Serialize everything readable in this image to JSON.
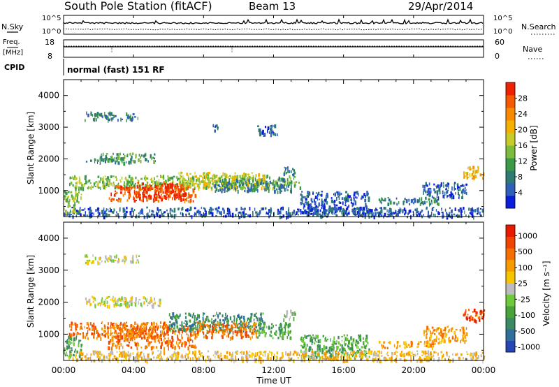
{
  "header": {
    "station": "South Pole Station (fitACF)",
    "beam": "Beam 13",
    "date": "29/Apr/2014"
  },
  "top_panels": {
    "nsky_label": "N.Sky",
    "nsky_ticks": [
      "10^5",
      "10^0"
    ],
    "nsearch_label": "N.Search",
    "nsearch_ticks": [
      "10^5",
      "10^0"
    ],
    "freq_label_1": "Freq.",
    "freq_label_2": "[MHz]",
    "freq_ticks": [
      "18",
      "8"
    ],
    "nave_label": "Nave",
    "nave_ticks": [
      "60",
      "0"
    ],
    "cpid_label": "CPID",
    "cpid_text": "normal (fast) 151 RF"
  },
  "chart_data": [
    {
      "type": "heatmap",
      "ylabel": "Slant Range [km]",
      "xlabel": "",
      "x_ticks": [
        "00:00",
        "04:00",
        "08:00",
        "12:00",
        "16:00",
        "20:00",
        "00:00"
      ],
      "xlim_hours": [
        0,
        24
      ],
      "ylim": [
        180,
        4500
      ],
      "y_ticks": [
        1000,
        2000,
        3000,
        4000
      ],
      "colorbar": {
        "label": "Power [dB]",
        "ticks": [
          "4",
          "8",
          "12",
          "16",
          "20",
          "24",
          "28"
        ],
        "colors": [
          "#0a1dd8",
          "#2f5fb7",
          "#2f7a72",
          "#3a9a48",
          "#7dbb3c",
          "#c7cc2a",
          "#f5b000",
          "#f78a00",
          "#f55a00",
          "#ee2200"
        ]
      },
      "scatter_regions": [
        {
          "t_start": 1.2,
          "t_end": 4.3,
          "r_start": 3250,
          "r_end": 3500,
          "level": 2
        },
        {
          "t_start": 1.2,
          "t_end": 4.0,
          "r_start": 1900,
          "r_end": 2050,
          "level": 2
        },
        {
          "t_start": 2.0,
          "t_end": 5.5,
          "r_start": 1950,
          "r_end": 2200,
          "level": 3
        },
        {
          "t_start": 0.3,
          "t_end": 13.5,
          "r_start": 1100,
          "r_end": 1500,
          "level": 4
        },
        {
          "t_start": 2.5,
          "t_end": 7.5,
          "r_start": 700,
          "r_end": 1200,
          "level": 8
        },
        {
          "t_start": 4.0,
          "t_end": 7.0,
          "r_start": 800,
          "r_end": 1300,
          "level": 9
        },
        {
          "t_start": 6.5,
          "t_end": 11.5,
          "r_start": 1100,
          "r_end": 1600,
          "level": 5
        },
        {
          "t_start": 8.5,
          "t_end": 13.0,
          "r_start": 1000,
          "r_end": 1400,
          "level": 2
        },
        {
          "t_start": 11.0,
          "t_end": 12.2,
          "r_start": 2800,
          "r_end": 3100,
          "level": 1
        },
        {
          "t_start": 8.5,
          "t_end": 8.8,
          "r_start": 2900,
          "r_end": 3100,
          "level": 1
        },
        {
          "t_start": 12.5,
          "t_end": 13.2,
          "r_start": 1500,
          "r_end": 1800,
          "level": 2
        },
        {
          "t_start": 13.5,
          "t_end": 17.5,
          "r_start": 300,
          "r_end": 1000,
          "level": 1
        },
        {
          "t_start": 18.0,
          "t_end": 21.5,
          "r_start": 600,
          "r_end": 800,
          "level": 2
        },
        {
          "t_start": 20.5,
          "t_end": 23.0,
          "r_start": 800,
          "r_end": 1300,
          "level": 1
        },
        {
          "t_start": 22.8,
          "t_end": 24.0,
          "r_start": 1400,
          "r_end": 1800,
          "level": 6
        },
        {
          "t_start": 0.0,
          "t_end": 24.0,
          "r_start": 200,
          "r_end": 500,
          "level": 1
        },
        {
          "t_start": 0.0,
          "t_end": 1.0,
          "r_start": 300,
          "r_end": 1000,
          "level": 4
        }
      ]
    },
    {
      "type": "heatmap",
      "ylabel": "Slant Range [km]",
      "xlabel": "Time UT",
      "x_ticks": [
        "00:00",
        "04:00",
        "08:00",
        "12:00",
        "16:00",
        "20:00",
        "00:00"
      ],
      "xlim_hours": [
        0,
        24
      ],
      "ylim": [
        180,
        4500
      ],
      "y_ticks": [
        1000,
        2000,
        3000,
        4000
      ],
      "colorbar": {
        "label": "Velocity [m s⁻¹]",
        "ticks": [
          "1000",
          "500",
          "100",
          "25",
          "-25",
          "-100",
          "-500",
          "-1000"
        ],
        "colors": [
          "#2447b3",
          "#2f6f9a",
          "#3a8a64",
          "#4aa33a",
          "#70c93a",
          "#bcbcbc",
          "#f7c400",
          "#f79a00",
          "#f56e00",
          "#f04400",
          "#e81a00"
        ]
      },
      "scatter_regions": [
        {
          "t_start": 1.2,
          "t_end": 4.3,
          "r_start": 3250,
          "r_end": 3500,
          "level": 5
        },
        {
          "t_start": 1.2,
          "t_end": 5.5,
          "r_start": 1900,
          "r_end": 2200,
          "level": 5
        },
        {
          "t_start": 0.3,
          "t_end": 6.0,
          "r_start": 900,
          "r_end": 1400,
          "level": 8
        },
        {
          "t_start": 2.5,
          "t_end": 7.5,
          "r_start": 600,
          "r_end": 1300,
          "level": 8
        },
        {
          "t_start": 6.0,
          "t_end": 11.5,
          "r_start": 1100,
          "r_end": 1700,
          "level": 2
        },
        {
          "t_start": 7.5,
          "t_end": 11.0,
          "r_start": 900,
          "r_end": 1400,
          "level": 8
        },
        {
          "t_start": 11.0,
          "t_end": 13.0,
          "r_start": 900,
          "r_end": 1400,
          "level": 3
        },
        {
          "t_start": 12.5,
          "t_end": 13.2,
          "r_start": 1500,
          "r_end": 1800,
          "level": 4
        },
        {
          "t_start": 13.5,
          "t_end": 17.5,
          "r_start": 300,
          "r_end": 1000,
          "level": 3
        },
        {
          "t_start": 18.0,
          "t_end": 21.5,
          "r_start": 600,
          "r_end": 800,
          "level": 7
        },
        {
          "t_start": 20.5,
          "t_end": 23.0,
          "r_start": 800,
          "r_end": 1300,
          "level": 7
        },
        {
          "t_start": 22.8,
          "t_end": 24.0,
          "r_start": 1400,
          "r_end": 1800,
          "level": 9
        },
        {
          "t_start": 0.0,
          "t_end": 1.0,
          "r_start": 300,
          "r_end": 1000,
          "level": 3
        },
        {
          "t_start": 0.0,
          "t_end": 24.0,
          "r_start": 200,
          "r_end": 500,
          "level": 6
        }
      ]
    }
  ]
}
